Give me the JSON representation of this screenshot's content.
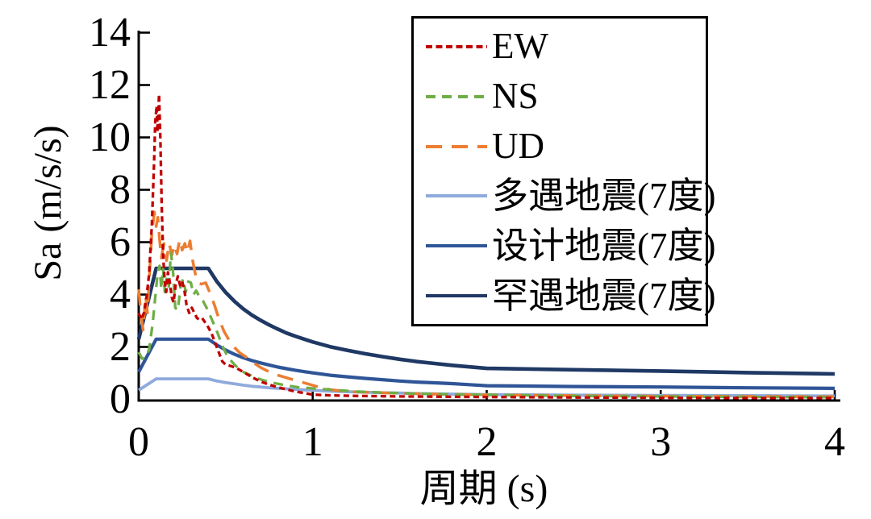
{
  "chart_data": {
    "type": "line",
    "title": "",
    "xlabel": "周期 (s)",
    "ylabel": "Sa (m/s/s)",
    "xlim": [
      0,
      4
    ],
    "ylim": [
      0,
      14
    ],
    "x_ticks": [
      0,
      1,
      2,
      3,
      4
    ],
    "y_ticks": [
      0,
      2,
      4,
      6,
      8,
      10,
      12,
      14
    ],
    "grid": false,
    "legend_position": "inside-top-right",
    "background_color": "#ffffff",
    "axis_color": "#000000",
    "series": [
      {
        "name": "EW",
        "color": "#c00000",
        "line_style": "dash-short",
        "points": [
          [
            0,
            3.3
          ],
          [
            0.015,
            3.05
          ],
          [
            0.03,
            3.3
          ],
          [
            0.045,
            3.9
          ],
          [
            0.06,
            4.8
          ],
          [
            0.075,
            6.6
          ],
          [
            0.088,
            9.0
          ],
          [
            0.095,
            10.6
          ],
          [
            0.103,
            11.2
          ],
          [
            0.108,
            10.2
          ],
          [
            0.117,
            11.65
          ],
          [
            0.124,
            10.0
          ],
          [
            0.132,
            7.4
          ],
          [
            0.141,
            5.4
          ],
          [
            0.15,
            4.45
          ],
          [
            0.158,
            4.1
          ],
          [
            0.168,
            4.85
          ],
          [
            0.178,
            4.5
          ],
          [
            0.19,
            3.9
          ],
          [
            0.2,
            3.7
          ],
          [
            0.212,
            4.35
          ],
          [
            0.225,
            4.7
          ],
          [
            0.238,
            4.35
          ],
          [
            0.25,
            4.5
          ],
          [
            0.263,
            4.15
          ],
          [
            0.275,
            3.6
          ],
          [
            0.29,
            3.3
          ],
          [
            0.305,
            3.5
          ],
          [
            0.32,
            3.3
          ],
          [
            0.335,
            3.1
          ],
          [
            0.35,
            3.05
          ],
          [
            0.365,
            3.1
          ],
          [
            0.38,
            2.95
          ],
          [
            0.4,
            2.75
          ],
          [
            0.42,
            2.5
          ],
          [
            0.44,
            2.15
          ],
          [
            0.46,
            1.8
          ],
          [
            0.48,
            1.45
          ],
          [
            0.5,
            1.32
          ],
          [
            0.53,
            1.27
          ],
          [
            0.56,
            1.2
          ],
          [
            0.6,
            1.05
          ],
          [
            0.65,
            0.85
          ],
          [
            0.7,
            0.68
          ],
          [
            0.75,
            0.56
          ],
          [
            0.8,
            0.46
          ],
          [
            0.9,
            0.3
          ],
          [
            1.0,
            0.18
          ],
          [
            1.1,
            0.15
          ],
          [
            1.25,
            0.13
          ],
          [
            1.5,
            0.11
          ],
          [
            1.75,
            0.1
          ],
          [
            2.0,
            0.09
          ],
          [
            2.5,
            0.07
          ],
          [
            3.0,
            0.06
          ],
          [
            3.5,
            0.05
          ],
          [
            4.0,
            0.05
          ]
        ]
      },
      {
        "name": "NS",
        "color": "#70ad47",
        "line_style": "dash-medium",
        "points": [
          [
            0,
            1.8
          ],
          [
            0.02,
            1.55
          ],
          [
            0.04,
            1.6
          ],
          [
            0.06,
            1.9
          ],
          [
            0.08,
            2.9
          ],
          [
            0.095,
            3.9
          ],
          [
            0.11,
            4.9
          ],
          [
            0.12,
            5.1
          ],
          [
            0.13,
            4.2
          ],
          [
            0.14,
            5.0
          ],
          [
            0.15,
            4.1
          ],
          [
            0.16,
            4.6
          ],
          [
            0.172,
            4.2
          ],
          [
            0.185,
            5.6
          ],
          [
            0.196,
            5.0
          ],
          [
            0.21,
            3.5
          ],
          [
            0.225,
            3.4
          ],
          [
            0.24,
            4.3
          ],
          [
            0.255,
            4.6
          ],
          [
            0.27,
            4.1
          ],
          [
            0.285,
            4.5
          ],
          [
            0.3,
            4.45
          ],
          [
            0.315,
            4.0
          ],
          [
            0.33,
            4.15
          ],
          [
            0.35,
            3.9
          ],
          [
            0.37,
            3.75
          ],
          [
            0.39,
            3.5
          ],
          [
            0.41,
            3.2
          ],
          [
            0.43,
            2.9
          ],
          [
            0.455,
            2.5
          ],
          [
            0.48,
            2.05
          ],
          [
            0.51,
            1.65
          ],
          [
            0.54,
            1.4
          ],
          [
            0.57,
            1.2
          ],
          [
            0.6,
            1.05
          ],
          [
            0.64,
            0.93
          ],
          [
            0.68,
            0.8
          ],
          [
            0.72,
            0.72
          ],
          [
            0.78,
            0.62
          ],
          [
            0.85,
            0.53
          ],
          [
            0.92,
            0.46
          ],
          [
            1.0,
            0.42
          ],
          [
            1.1,
            0.37
          ],
          [
            1.25,
            0.3
          ],
          [
            1.4,
            0.26
          ],
          [
            1.6,
            0.22
          ],
          [
            1.8,
            0.19
          ],
          [
            2.0,
            0.17
          ],
          [
            2.5,
            0.13
          ],
          [
            3.0,
            0.11
          ],
          [
            3.5,
            0.09
          ],
          [
            4.0,
            0.08
          ]
        ]
      },
      {
        "name": "UD",
        "color": "#ed7d31",
        "line_style": "dash-long",
        "points": [
          [
            0,
            4.2
          ],
          [
            0.012,
            3.3
          ],
          [
            0.025,
            2.65
          ],
          [
            0.04,
            3.95
          ],
          [
            0.05,
            3.3
          ],
          [
            0.06,
            4.5
          ],
          [
            0.075,
            6.3
          ],
          [
            0.09,
            7.15
          ],
          [
            0.1,
            6.6
          ],
          [
            0.11,
            6.95
          ],
          [
            0.12,
            6.1
          ],
          [
            0.13,
            5.4
          ],
          [
            0.145,
            5.95
          ],
          [
            0.16,
            5.3
          ],
          [
            0.175,
            5.95
          ],
          [
            0.19,
            5.5
          ],
          [
            0.205,
            5.9
          ],
          [
            0.22,
            5.55
          ],
          [
            0.235,
            6.1
          ],
          [
            0.25,
            5.7
          ],
          [
            0.265,
            5.95
          ],
          [
            0.28,
            5.6
          ],
          [
            0.295,
            6.05
          ],
          [
            0.31,
            5.3
          ],
          [
            0.325,
            4.8
          ],
          [
            0.34,
            4.45
          ],
          [
            0.36,
            4.4
          ],
          [
            0.385,
            4.45
          ],
          [
            0.41,
            4.05
          ],
          [
            0.435,
            3.6
          ],
          [
            0.46,
            3.1
          ],
          [
            0.49,
            2.6
          ],
          [
            0.52,
            2.25
          ],
          [
            0.55,
            1.98
          ],
          [
            0.58,
            1.78
          ],
          [
            0.62,
            1.6
          ],
          [
            0.66,
            1.4
          ],
          [
            0.7,
            1.22
          ],
          [
            0.75,
            1.05
          ],
          [
            0.8,
            0.92
          ],
          [
            0.87,
            0.78
          ],
          [
            0.95,
            0.63
          ],
          [
            1.02,
            0.5
          ],
          [
            1.1,
            0.37
          ],
          [
            1.2,
            0.3
          ],
          [
            1.35,
            0.26
          ],
          [
            1.5,
            0.23
          ],
          [
            1.7,
            0.2
          ],
          [
            2.0,
            0.17
          ],
          [
            2.5,
            0.14
          ],
          [
            3.0,
            0.12
          ],
          [
            3.5,
            0.11
          ],
          [
            4.0,
            0.1
          ]
        ]
      },
      {
        "name": "多遇地震(7度)",
        "color": "#8faadc",
        "line_style": "solid",
        "points": [
          [
            0,
            0.35
          ],
          [
            0.1,
            0.78
          ],
          [
            0.4,
            0.78
          ],
          [
            0.45,
            0.7
          ],
          [
            0.5,
            0.64
          ],
          [
            0.55,
            0.59
          ],
          [
            0.6,
            0.54
          ],
          [
            0.65,
            0.5
          ],
          [
            0.7,
            0.47
          ],
          [
            0.75,
            0.44
          ],
          [
            0.8,
            0.42
          ],
          [
            0.9,
            0.38
          ],
          [
            1.0,
            0.34
          ],
          [
            1.1,
            0.31
          ],
          [
            1.2,
            0.29
          ],
          [
            1.3,
            0.27
          ],
          [
            1.4,
            0.25
          ],
          [
            1.5,
            0.24
          ],
          [
            1.6,
            0.22
          ],
          [
            1.7,
            0.21
          ],
          [
            1.8,
            0.2
          ],
          [
            1.9,
            0.19
          ],
          [
            2.0,
            0.18
          ],
          [
            2.5,
            0.16
          ],
          [
            3.0,
            0.15
          ],
          [
            3.5,
            0.14
          ],
          [
            4.0,
            0.13
          ]
        ]
      },
      {
        "name": "设计地震(7度)",
        "color": "#2f5597",
        "line_style": "solid",
        "points": [
          [
            0,
            1.04
          ],
          [
            0.1,
            2.3
          ],
          [
            0.4,
            2.3
          ],
          [
            0.45,
            2.07
          ],
          [
            0.5,
            1.88
          ],
          [
            0.55,
            1.72
          ],
          [
            0.6,
            1.59
          ],
          [
            0.65,
            1.48
          ],
          [
            0.7,
            1.39
          ],
          [
            0.75,
            1.31
          ],
          [
            0.8,
            1.23
          ],
          [
            0.85,
            1.17
          ],
          [
            0.9,
            1.11
          ],
          [
            1.0,
            1.01
          ],
          [
            1.1,
            0.92
          ],
          [
            1.2,
            0.86
          ],
          [
            1.3,
            0.8
          ],
          [
            1.4,
            0.75
          ],
          [
            1.5,
            0.7
          ],
          [
            1.6,
            0.66
          ],
          [
            1.7,
            0.63
          ],
          [
            1.8,
            0.6
          ],
          [
            1.9,
            0.56
          ],
          [
            2.0,
            0.52
          ],
          [
            2.5,
            0.49
          ],
          [
            3.0,
            0.47
          ],
          [
            3.5,
            0.44
          ],
          [
            4.0,
            0.42
          ]
        ]
      },
      {
        "name": "罕遇地震(7度)",
        "color": "#1f3864",
        "line_style": "solid",
        "points": [
          [
            0,
            2.3
          ],
          [
            0.1,
            5.0
          ],
          [
            0.4,
            5.0
          ],
          [
            0.45,
            4.49
          ],
          [
            0.5,
            4.08
          ],
          [
            0.55,
            3.74
          ],
          [
            0.6,
            3.46
          ],
          [
            0.65,
            3.22
          ],
          [
            0.7,
            3.02
          ],
          [
            0.75,
            2.84
          ],
          [
            0.8,
            2.68
          ],
          [
            0.85,
            2.53
          ],
          [
            0.9,
            2.41
          ],
          [
            1.0,
            2.19
          ],
          [
            1.1,
            2.01
          ],
          [
            1.2,
            1.87
          ],
          [
            1.3,
            1.74
          ],
          [
            1.4,
            1.63
          ],
          [
            1.5,
            1.53
          ],
          [
            1.6,
            1.44
          ],
          [
            1.7,
            1.37
          ],
          [
            1.8,
            1.3
          ],
          [
            1.9,
            1.24
          ],
          [
            2.0,
            1.18
          ],
          [
            2.5,
            1.13
          ],
          [
            3.0,
            1.08
          ],
          [
            3.5,
            1.02
          ],
          [
            4.0,
            0.97
          ]
        ]
      }
    ]
  }
}
